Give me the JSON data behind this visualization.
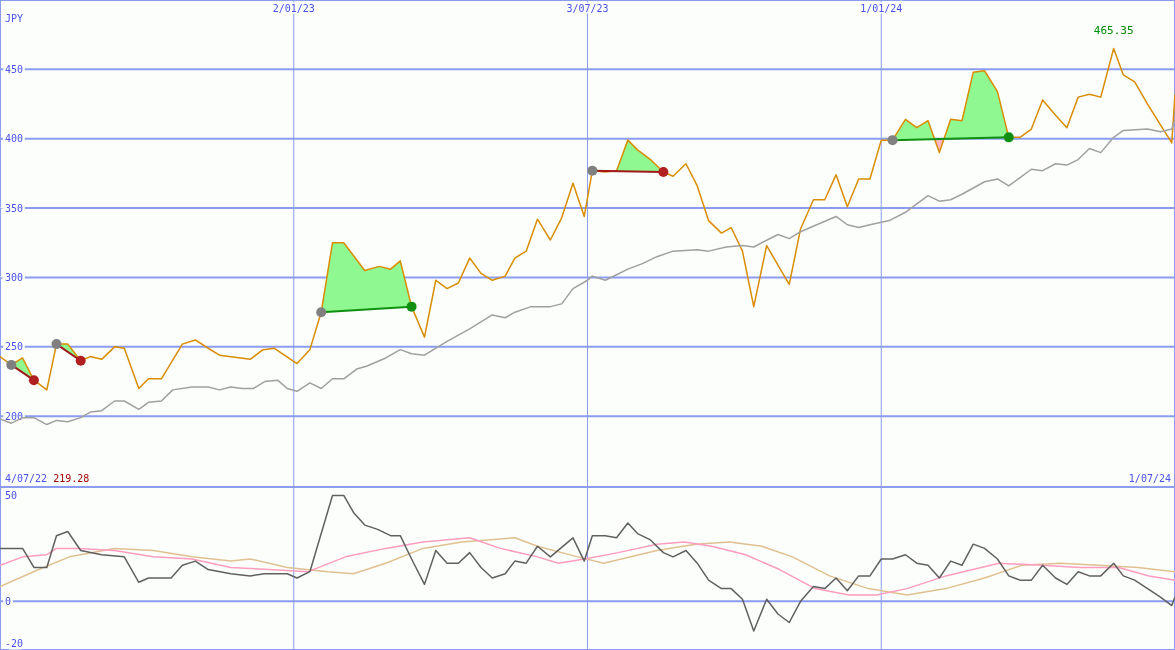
{
  "chart_data": [
    {
      "type": "line",
      "ylabel": "JPY",
      "xlim": [
        "2022-07-04",
        "2024-07-01"
      ],
      "ylim": [
        149,
        500
      ],
      "xticks": [
        {
          "value": "2023-01-02",
          "label": "2/01/23"
        },
        {
          "value": "2023-07-03",
          "label": "3/07/23"
        },
        {
          "value": "2024-01-01",
          "label": "1/01/24"
        }
      ],
      "yticks": [
        200,
        250,
        300,
        350,
        400,
        450
      ],
      "grid": true,
      "annotations": [
        {
          "text": "465.35",
          "x": "2024-05-24",
          "y": 465.35
        },
        "4/07/22",
        "219.28",
        "1/07/24"
      ],
      "series": [
        {
          "color": "#d98c00",
          "x": [
            "2022-07-04",
            "2022-07-11",
            "2022-07-18",
            "2022-07-25",
            "2022-08-02",
            "2022-08-08",
            "2022-08-15",
            "2022-08-23",
            "2022-08-29",
            "2022-09-05",
            "2022-09-13",
            "2022-09-19",
            "2022-09-28",
            "2022-10-04",
            "2022-10-12",
            "2022-10-25",
            "2022-11-02",
            "2022-11-10",
            "2022-11-17",
            "2022-12-06",
            "2022-12-14",
            "2022-12-21",
            "2023-01-04",
            "2023-01-12",
            "2023-01-19",
            "2023-01-26",
            "2023-02-02",
            "2023-02-15",
            "2023-02-24",
            "2023-03-03",
            "2023-03-09",
            "2023-03-16",
            "2023-03-24",
            "2023-03-31",
            "2023-04-07",
            "2023-04-14",
            "2023-04-21",
            "2023-04-28",
            "2023-05-05",
            "2023-05-13",
            "2023-05-19",
            "2023-05-26",
            "2023-06-02",
            "2023-06-10",
            "2023-06-17",
            "2023-06-24",
            "2023-07-01",
            "2023-07-06",
            "2023-07-14",
            "2023-07-21",
            "2023-07-28",
            "2023-08-03",
            "2023-08-11",
            "2023-08-19",
            "2023-08-25",
            "2023-09-02",
            "2023-09-09",
            "2023-09-16",
            "2023-09-24",
            "2023-09-30",
            "2023-10-07",
            "2023-10-14",
            "2023-10-22",
            "2023-10-29",
            "2023-11-05",
            "2023-11-12",
            "2023-11-20",
            "2023-11-27",
            "2023-12-04",
            "2023-12-11",
            "2023-12-18",
            "2023-12-25",
            "2024-01-01",
            "2024-01-08",
            "2024-01-16",
            "2024-01-23",
            "2024-01-30",
            "2024-02-06",
            "2024-02-13",
            "2024-02-20",
            "2024-02-27",
            "2024-03-05",
            "2024-03-13",
            "2024-03-20",
            "2024-03-27",
            "2024-04-03",
            "2024-04-10",
            "2024-04-18",
            "2024-04-25",
            "2024-05-02",
            "2024-05-09",
            "2024-05-16",
            "2024-05-24",
            "2024-05-30",
            "2024-06-06",
            "2024-06-14",
            "2024-06-22",
            "2024-06-29",
            "2024-07-01"
          ],
          "values": [
            243,
            237,
            242,
            226,
            219,
            252,
            252,
            240,
            243,
            241,
            250,
            249,
            220,
            227,
            227,
            252,
            255,
            249,
            244,
            241,
            248,
            249,
            238,
            248,
            275,
            325,
            325,
            305,
            308,
            306,
            312,
            279,
            257,
            298,
            292,
            296,
            314,
            303,
            298,
            301,
            314,
            319,
            342,
            327,
            343,
            368,
            344,
            377,
            376,
            377,
            399,
            392,
            385,
            376,
            373,
            382,
            366,
            341,
            332,
            336,
            319,
            279,
            323,
            309,
            295,
            335,
            356,
            356,
            374,
            351,
            371,
            371,
            399,
            399,
            414,
            408,
            413,
            390,
            414,
            413,
            448,
            449,
            434,
            401,
            401,
            407,
            428,
            417,
            408,
            430,
            432,
            430,
            465,
            446,
            441,
            425,
            410,
            397,
            432
          ]
        },
        {
          "color": "#a0a0a0",
          "x": [
            "2022-07-04",
            "2022-07-11",
            "2022-07-18",
            "2022-07-25",
            "2022-08-02",
            "2022-08-08",
            "2022-08-15",
            "2022-08-23",
            "2022-08-29",
            "2022-09-05",
            "2022-09-13",
            "2022-09-19",
            "2022-09-28",
            "2022-10-04",
            "2022-10-12",
            "2022-10-19",
            "2022-10-31",
            "2022-11-10",
            "2022-11-17",
            "2022-11-24",
            "2022-12-01",
            "2022-12-08",
            "2022-12-15",
            "2022-12-23",
            "2022-12-29",
            "2023-01-04",
            "2023-01-12",
            "2023-01-19",
            "2023-01-26",
            "2023-02-02",
            "2023-02-10",
            "2023-02-16",
            "2023-02-28",
            "2023-03-09",
            "2023-03-16",
            "2023-03-24",
            "2023-04-07",
            "2023-04-21",
            "2023-05-05",
            "2023-05-13",
            "2023-05-19",
            "2023-05-29",
            "2023-06-10",
            "2023-06-17",
            "2023-06-24",
            "2023-07-03",
            "2023-07-06",
            "2023-07-14",
            "2023-07-21",
            "2023-07-28",
            "2023-08-06",
            "2023-08-15",
            "2023-08-25",
            "2023-09-09",
            "2023-09-16",
            "2023-09-27",
            "2023-10-07",
            "2023-10-14",
            "2023-10-29",
            "2023-11-05",
            "2023-11-12",
            "2023-11-22",
            "2023-12-04",
            "2023-12-11",
            "2023-12-18",
            "2023-12-25",
            "2024-01-06",
            "2024-01-16",
            "2024-01-23",
            "2024-01-30",
            "2024-02-06",
            "2024-02-13",
            "2024-02-20",
            "2024-03-05",
            "2024-03-13",
            "2024-03-20",
            "2024-03-27",
            "2024-04-03",
            "2024-04-10",
            "2024-04-18",
            "2024-04-25",
            "2024-05-02",
            "2024-05-09",
            "2024-05-16",
            "2024-05-24",
            "2024-05-30",
            "2024-06-14",
            "2024-06-22",
            "2024-06-29",
            "2024-07-01"
          ],
          "values": [
            198,
            195,
            199,
            199,
            194,
            197,
            196,
            199,
            203,
            204,
            211,
            211,
            205,
            210,
            211,
            219,
            221,
            221,
            219,
            221,
            220,
            220,
            225,
            226,
            220,
            218,
            224,
            220,
            227,
            227,
            234,
            236,
            242,
            248,
            245,
            244,
            254,
            263,
            273,
            271,
            275,
            279,
            279,
            281,
            292,
            298,
            301,
            298,
            302,
            306,
            310,
            315,
            319,
            320,
            319,
            322,
            323,
            322,
            331,
            328,
            333,
            338,
            344,
            338,
            336,
            338,
            341,
            347,
            353,
            359,
            355,
            356,
            360,
            369,
            371,
            366,
            372,
            378,
            377,
            382,
            381,
            385,
            393,
            390,
            401,
            406,
            407,
            405,
            407,
            414
          ]
        },
        {
          "color": "#a01818",
          "marker": "circle",
          "colors": [
            "#808080",
            "#b02020"
          ],
          "x": [
            "2022-07-11",
            "2022-07-25"
          ],
          "values": [
            237,
            226
          ]
        },
        {
          "color": "#a01818",
          "marker": "circle",
          "colors": [
            "#808080",
            "#b02020"
          ],
          "x": [
            "2022-08-08",
            "2022-08-23"
          ],
          "values": [
            252,
            240
          ]
        },
        {
          "color": "#109010",
          "marker": "circle",
          "colors": [
            "#808080",
            "#109010"
          ],
          "x": [
            "2023-01-19",
            "2023-03-16"
          ],
          "values": [
            275,
            279
          ]
        },
        {
          "color": "#a01818",
          "marker": "circle",
          "colors": [
            "#808080",
            "#b02020"
          ],
          "x": [
            "2023-07-06",
            "2023-08-19"
          ],
          "values": [
            377,
            376
          ]
        },
        {
          "color": "#109010",
          "marker": "circle",
          "colors": [
            "#808080",
            "#109010"
          ],
          "x": [
            "2024-01-08",
            "2024-03-20"
          ],
          "values": [
            399,
            401
          ]
        }
      ]
    },
    {
      "type": "line",
      "xlim": [
        "2022-07-04",
        "2024-07-01"
      ],
      "ylim": [
        -23,
        54
      ],
      "xticks": [
        {
          "value": "2023-01-02",
          "label": null
        },
        {
          "value": "2023-07-03",
          "label": null
        },
        {
          "value": "2024-01-01",
          "label": null
        }
      ],
      "yticks": [
        -20,
        0,
        50
      ],
      "grid": "x",
      "tick_labels": "y",
      "ref_lines": [
        {
          "axis": "y",
          "value": 0
        }
      ],
      "series": [
        {
          "color": "#e0c090",
          "x": [
            "2022-07-04",
            "2022-07-28",
            "2022-08-16",
            "2022-09-13",
            "2022-10-07",
            "2022-10-31",
            "2022-11-24",
            "2022-12-06",
            "2022-12-29",
            "2023-01-23",
            "2023-02-08",
            "2023-02-28",
            "2023-03-23",
            "2023-04-16",
            "2023-05-19",
            "2023-06-02",
            "2023-06-27",
            "2023-07-13",
            "2023-08-15",
            "2023-09-08",
            "2023-09-29",
            "2023-10-19",
            "2023-11-07",
            "2023-11-30",
            "2023-12-24",
            "2024-01-17",
            "2024-02-10",
            "2024-03-05",
            "2024-03-28",
            "2024-04-21",
            "2024-05-15",
            "2024-06-08",
            "2024-07-01"
          ],
          "values": [
            7,
            15,
            21,
            25,
            24,
            21,
            19,
            20,
            16,
            14,
            13,
            18,
            25,
            28,
            30,
            26,
            21,
            18,
            24,
            27,
            28,
            26,
            21,
            12,
            6,
            3,
            6,
            11,
            17,
            18,
            17,
            16,
            14
          ]
        },
        {
          "color": "#ff9cc0",
          "x": [
            "2022-07-04",
            "2022-07-18",
            "2022-08-02",
            "2022-08-08",
            "2022-08-21",
            "2022-09-13",
            "2022-10-07",
            "2022-10-31",
            "2022-11-24",
            "2022-12-18",
            "2023-01-11",
            "2023-02-03",
            "2023-02-28",
            "2023-03-23",
            "2023-04-21",
            "2023-05-10",
            "2023-06-02",
            "2023-06-15",
            "2023-07-01",
            "2023-07-22",
            "2023-08-15",
            "2023-09-01",
            "2023-09-18",
            "2023-10-09",
            "2023-10-30",
            "2023-11-21",
            "2023-12-12",
            "2023-12-29",
            "2024-01-17",
            "2024-02-10",
            "2024-03-14",
            "2024-04-10",
            "2024-05-03",
            "2024-05-27",
            "2024-06-15",
            "2024-07-01"
          ],
          "values": [
            17,
            21,
            22,
            25,
            25,
            24,
            21,
            20,
            16,
            15,
            14,
            21,
            25,
            28,
            30,
            25,
            21,
            18,
            20,
            23,
            27,
            28,
            26,
            22,
            15,
            6,
            3,
            3,
            6,
            12,
            18,
            17,
            16,
            16,
            12,
            10
          ]
        },
        {
          "color": "#606060",
          "x": [
            "2022-07-04",
            "2022-07-18",
            "2022-07-25",
            "2022-08-02",
            "2022-08-08",
            "2022-08-15",
            "2022-08-23",
            "2022-09-05",
            "2022-09-19",
            "2022-09-28",
            "2022-10-04",
            "2022-10-18",
            "2022-10-25",
            "2022-11-02",
            "2022-11-10",
            "2022-11-24",
            "2022-12-06",
            "2022-12-15",
            "2022-12-29",
            "2023-01-04",
            "2023-01-12",
            "2023-01-26",
            "2023-02-02",
            "2023-02-08",
            "2023-02-15",
            "2023-02-23",
            "2023-03-03",
            "2023-03-09",
            "2023-03-16",
            "2023-03-24",
            "2023-03-31",
            "2023-04-07",
            "2023-04-14",
            "2023-04-21",
            "2023-04-28",
            "2023-05-05",
            "2023-05-13",
            "2023-05-19",
            "2023-05-26",
            "2023-06-02",
            "2023-06-10",
            "2023-06-24",
            "2023-07-01",
            "2023-07-06",
            "2023-07-14",
            "2023-07-21",
            "2023-07-28",
            "2023-08-03",
            "2023-08-11",
            "2023-08-19",
            "2023-08-25",
            "2023-09-02",
            "2023-09-09",
            "2023-09-16",
            "2023-09-24",
            "2023-09-30",
            "2023-10-07",
            "2023-10-14",
            "2023-10-22",
            "2023-10-29",
            "2023-11-05",
            "2023-11-12",
            "2023-11-20",
            "2023-11-27",
            "2023-12-04",
            "2023-12-11",
            "2023-12-18",
            "2023-12-25",
            "2024-01-01",
            "2024-01-08",
            "2024-01-16",
            "2024-01-23",
            "2024-01-30",
            "2024-02-06",
            "2024-02-13",
            "2024-02-20",
            "2024-02-27",
            "2024-03-05",
            "2024-03-13",
            "2024-03-20",
            "2024-03-27",
            "2024-04-03",
            "2024-04-10",
            "2024-04-18",
            "2024-04-25",
            "2024-05-02",
            "2024-05-09",
            "2024-05-16",
            "2024-05-24",
            "2024-05-30",
            "2024-06-06",
            "2024-06-14",
            "2024-06-22",
            "2024-06-29",
            "2024-07-01"
          ],
          "values": [
            25,
            25,
            16,
            16,
            31,
            33,
            24,
            22,
            21,
            9,
            11,
            11,
            17,
            19,
            15,
            13,
            12,
            13,
            13,
            11,
            14,
            50,
            50,
            42,
            36,
            34,
            31,
            31,
            20,
            8,
            24,
            18,
            18,
            23,
            16,
            11,
            13,
            19,
            18,
            26,
            21,
            30,
            19,
            31,
            31,
            30,
            37,
            32,
            29,
            23,
            21,
            24,
            18,
            10,
            6,
            6,
            1,
            -14,
            1,
            -6,
            -10,
            0,
            7,
            6,
            11,
            5,
            12,
            12,
            20,
            20,
            22,
            18,
            17,
            11,
            19,
            17,
            27,
            25,
            20,
            12,
            10,
            10,
            17,
            11,
            8,
            14,
            12,
            12,
            18,
            12,
            10,
            6,
            2,
            -2,
            2
          ]
        }
      ]
    }
  ]
}
